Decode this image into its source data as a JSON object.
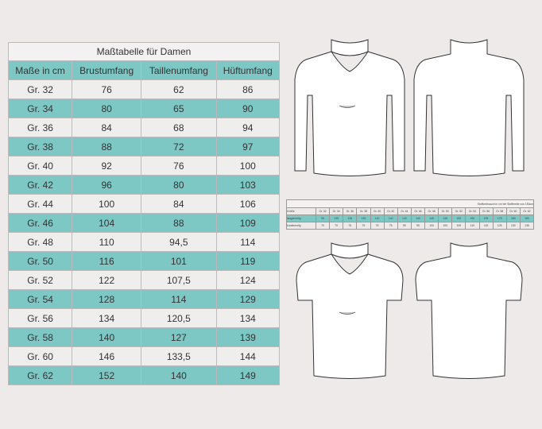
{
  "main_table": {
    "title": "Maßtabelle für Damen",
    "headers": [
      "Maße in cm",
      "Brustumfang",
      "Taillenumfang",
      "Hüftumfang"
    ],
    "rows": [
      [
        "Gr. 32",
        "76",
        "62",
        "86"
      ],
      [
        "Gr. 34",
        "80",
        "65",
        "90"
      ],
      [
        "Gr. 36",
        "84",
        "68",
        "94"
      ],
      [
        "Gr. 38",
        "88",
        "72",
        "97"
      ],
      [
        "Gr. 40",
        "92",
        "76",
        "100"
      ],
      [
        "Gr. 42",
        "96",
        "80",
        "103"
      ],
      [
        "Gr. 44",
        "100",
        "84",
        "106"
      ],
      [
        "Gr. 46",
        "104",
        "88",
        "109"
      ],
      [
        "Gr. 48",
        "110",
        "94,5",
        "114"
      ],
      [
        "Gr. 50",
        "116",
        "101",
        "119"
      ],
      [
        "Gr. 52",
        "122",
        "107,5",
        "124"
      ],
      [
        "Gr. 54",
        "128",
        "114",
        "129"
      ],
      [
        "Gr. 56",
        "134",
        "120,5",
        "134"
      ],
      [
        "Gr. 58",
        "140",
        "127",
        "139"
      ],
      [
        "Gr. 60",
        "146",
        "133,5",
        "144"
      ],
      [
        "Gr. 62",
        "152",
        "140",
        "149"
      ]
    ]
  },
  "fabric_table": {
    "caption": "Stoffverbrauch in cm bei Stoffbreite von 150cm",
    "size_label": "Größe",
    "sizes": [
      "Gr. 32",
      "Gr. 34",
      "Gr. 36",
      "Gr. 38",
      "Gr. 40",
      "Gr. 42",
      "Gr. 44",
      "Gr. 46",
      "Gr. 48",
      "Gr. 50",
      "Gr. 52",
      "Gr. 54",
      "Gr. 56",
      "Gr. 58",
      "Gr. 60",
      "Gr. 62"
    ],
    "rows": [
      {
        "label": "langarmelig",
        "values": [
          "95",
          "135",
          "135",
          "135",
          "140",
          "140",
          "140",
          "140",
          "145",
          "145",
          "150",
          "150",
          "155",
          "175",
          "180",
          "180"
        ]
      },
      {
        "label": "kurzärmelig",
        "values": [
          "70",
          "70",
          "75",
          "75",
          "75",
          "75",
          "95",
          "95",
          "100",
          "100",
          "105",
          "110",
          "115",
          "125",
          "130",
          "135"
        ]
      }
    ]
  },
  "colors": {
    "teal": "#7dc8c4",
    "light": "#f0eded",
    "background": "#eeeaea"
  }
}
